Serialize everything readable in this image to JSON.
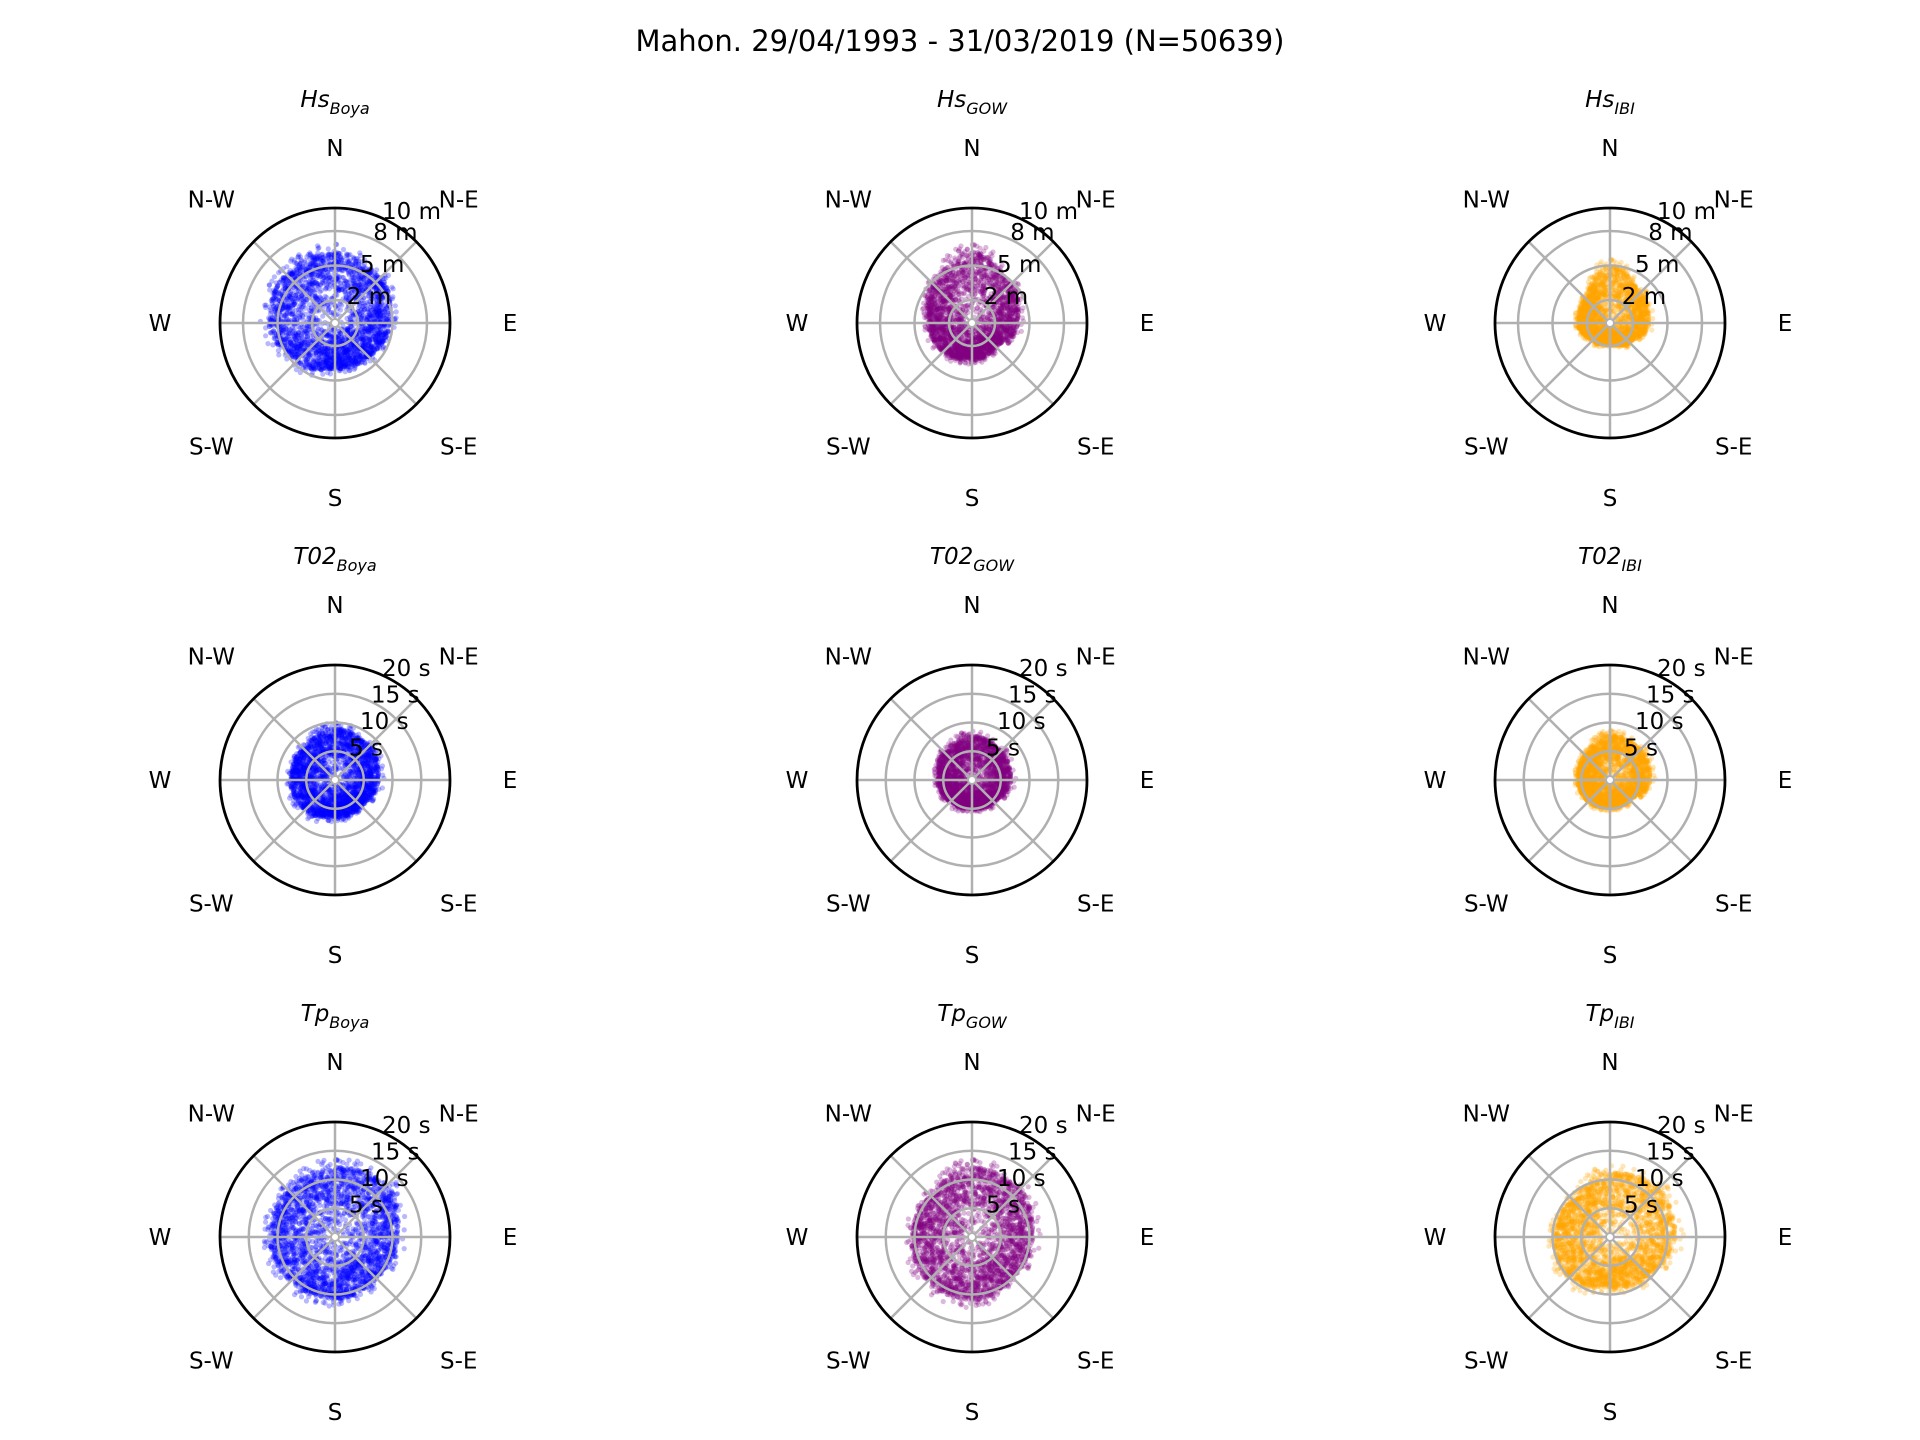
{
  "chart_data": {
    "type": "scatter",
    "title": "Mahon. 29/04/1993 - 31/03/2019 (N=50639)",
    "direction_labels": [
      "N",
      "N-E",
      "E",
      "S-E",
      "S",
      "S-W",
      "W",
      "N-W"
    ],
    "colors": {
      "Boya": "#0000ff",
      "GOW": "#800080",
      "IBI": "#ffa500"
    },
    "series": [
      "Boya",
      "GOW",
      "IBI"
    ],
    "rows": [
      {
        "variable": "Hs",
        "unit": "m",
        "rmax": 10,
        "rticks": [
          2,
          5,
          8,
          10
        ],
        "rtick_labels": [
          "2 m",
          "5 m",
          "8 m",
          "10 m"
        ],
        "panels": [
          {
            "title": "Hs",
            "subscript": "Boya",
            "series": "Boya",
            "approx_max_by_direction": [
              6.2,
              5.6,
              4.8,
              4.2,
              4.0,
              4.8,
              5.8,
              6.0
            ]
          },
          {
            "title": "Hs",
            "subscript": "GOW",
            "series": "GOW",
            "approx_max_by_direction": [
              6.2,
              4.8,
              4.0,
              3.0,
              3.2,
              3.6,
              3.8,
              4.8
            ]
          },
          {
            "title": "Hs",
            "subscript": "IBI",
            "series": "IBI",
            "approx_max_by_direction": [
              5.0,
              3.8,
              3.4,
              2.4,
              1.8,
              2.2,
              2.8,
              3.0
            ]
          }
        ]
      },
      {
        "variable": "T02",
        "unit": "s",
        "rmax": 20,
        "rticks": [
          5,
          10,
          15,
          20
        ],
        "rtick_labels": [
          "5 s",
          "10 s",
          "15 s",
          "20 s"
        ],
        "panels": [
          {
            "title": "T02",
            "subscript": "Boya",
            "series": "Boya",
            "approx_max_by_direction": [
              9.0,
              8.5,
              7.6,
              6.5,
              6.5,
              7.5,
              7.8,
              7.8
            ]
          },
          {
            "title": "T02",
            "subscript": "GOW",
            "series": "GOW",
            "approx_max_by_direction": [
              7.7,
              7.2,
              6.8,
              5.5,
              5.0,
              5.5,
              6.0,
              6.8
            ]
          },
          {
            "title": "T02",
            "subscript": "IBI",
            "series": "IBI",
            "approx_max_by_direction": [
              7.8,
              7.6,
              7.0,
              5.0,
              4.8,
              5.4,
              5.6,
              6.2
            ]
          }
        ]
      },
      {
        "variable": "Tp",
        "unit": "s",
        "rmax": 20,
        "rticks": [
          5,
          10,
          15,
          20
        ],
        "rtick_labels": [
          "5 s",
          "10 s",
          "15 s",
          "20 s"
        ],
        "panels": [
          {
            "title": "Tp",
            "subscript": "Boya",
            "series": "Boya",
            "approx_max_by_direction": [
              12.2,
              12.8,
              11.0,
              10.2,
              10.8,
              11.0,
              11.4,
              11.5
            ]
          },
          {
            "title": "Tp",
            "subscript": "GOW",
            "series": "GOW",
            "approx_max_by_direction": [
              12.2,
              11.8,
              10.6,
              10.0,
              11.0,
              11.0,
              10.6,
              10.2
            ]
          },
          {
            "title": "Tp",
            "subscript": "IBI",
            "series": "IBI",
            "approx_max_by_direction": [
              11.2,
              12.0,
              11.4,
              9.6,
              8.8,
              10.2,
              9.8,
              9.2
            ]
          }
        ]
      }
    ]
  }
}
